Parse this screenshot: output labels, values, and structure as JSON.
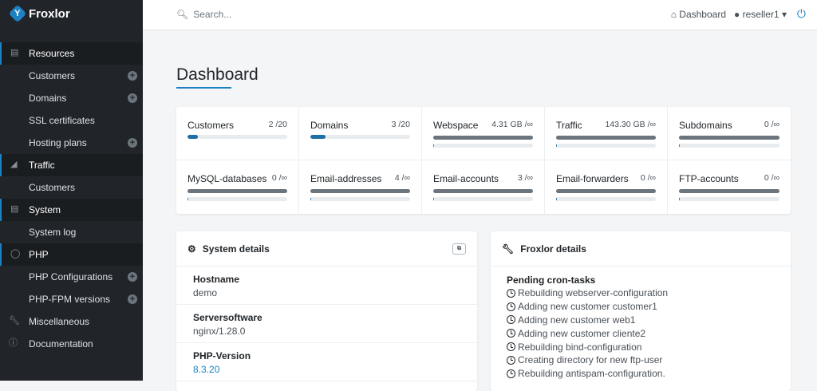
{
  "app": {
    "name": "Froxlor"
  },
  "topbar": {
    "search_placeholder": "Search...",
    "dashboard_link": "Dashboard",
    "user": "reseller1"
  },
  "sidebar": {
    "items": [
      {
        "label": "Resources",
        "type": "head",
        "icon": "box-icon",
        "active": true
      },
      {
        "label": "Customers",
        "type": "sub",
        "plus": true
      },
      {
        "label": "Domains",
        "type": "sub",
        "plus": true
      },
      {
        "label": "SSL certificates",
        "type": "sub"
      },
      {
        "label": "Hosting plans",
        "type": "sub",
        "plus": true
      },
      {
        "label": "Traffic",
        "type": "head",
        "icon": "chart-area-icon",
        "active": true
      },
      {
        "label": "Customers",
        "type": "sub"
      },
      {
        "label": "System",
        "type": "head",
        "icon": "server-icon",
        "active": true
      },
      {
        "label": "System log",
        "type": "sub"
      },
      {
        "label": "PHP",
        "type": "head",
        "icon": "php-icon",
        "active": true
      },
      {
        "label": "PHP Configurations",
        "type": "sub",
        "plus": true
      },
      {
        "label": "PHP-FPM versions",
        "type": "sub",
        "plus": true
      },
      {
        "label": "Miscellaneous",
        "type": "top",
        "icon": "wrench-icon"
      },
      {
        "label": "Documentation",
        "type": "top",
        "icon": "info-icon"
      }
    ]
  },
  "page": {
    "title": "Dashboard"
  },
  "colors": {
    "accent": "#1d82c4",
    "bar": "#1d6fa5",
    "sidebar": "#212529"
  },
  "stats": [
    {
      "label": "Customers",
      "value": "2 /20",
      "percent": 10,
      "unlimited": false
    },
    {
      "label": "Domains",
      "value": "3 /20",
      "percent": 15,
      "unlimited": false
    },
    {
      "label": "Webspace",
      "value": "4.31 GB /∞",
      "percent": 1,
      "unlimited": true
    },
    {
      "label": "Traffic",
      "value": "143.30 GB /∞",
      "percent": 1,
      "unlimited": true
    },
    {
      "label": "Subdomains",
      "value": "0 /∞",
      "percent": 1,
      "unlimited": true
    },
    {
      "label": "MySQL-databases",
      "value": "0 /∞",
      "percent": 1,
      "unlimited": true
    },
    {
      "label": "Email-addresses",
      "value": "4 /∞",
      "percent": 1,
      "unlimited": true
    },
    {
      "label": "Email-accounts",
      "value": "3 /∞",
      "percent": 1,
      "unlimited": true
    },
    {
      "label": "Email-forwarders",
      "value": "0 /∞",
      "percent": 1,
      "unlimited": true
    },
    {
      "label": "FTP-accounts",
      "value": "0 /∞",
      "percent": 1,
      "unlimited": true
    }
  ],
  "system_details": {
    "title": "System details",
    "rows": [
      {
        "label": "Hostname",
        "value": "demo"
      },
      {
        "label": "Serversoftware",
        "value": "nginx/1.28.0"
      },
      {
        "label": "PHP-Version",
        "value": "8.3.20",
        "link": true
      }
    ]
  },
  "froxlor_details": {
    "title": "Froxlor details",
    "tasks_label": "Pending cron-tasks",
    "tasks": [
      "Rebuilding webserver-configuration",
      "Adding new customer customer1",
      "Adding new customer web1",
      "Adding new customer cliente2",
      "Rebuilding bind-configuration",
      "Creating directory for new ftp-user",
      "Rebuilding antispam-configuration."
    ]
  }
}
